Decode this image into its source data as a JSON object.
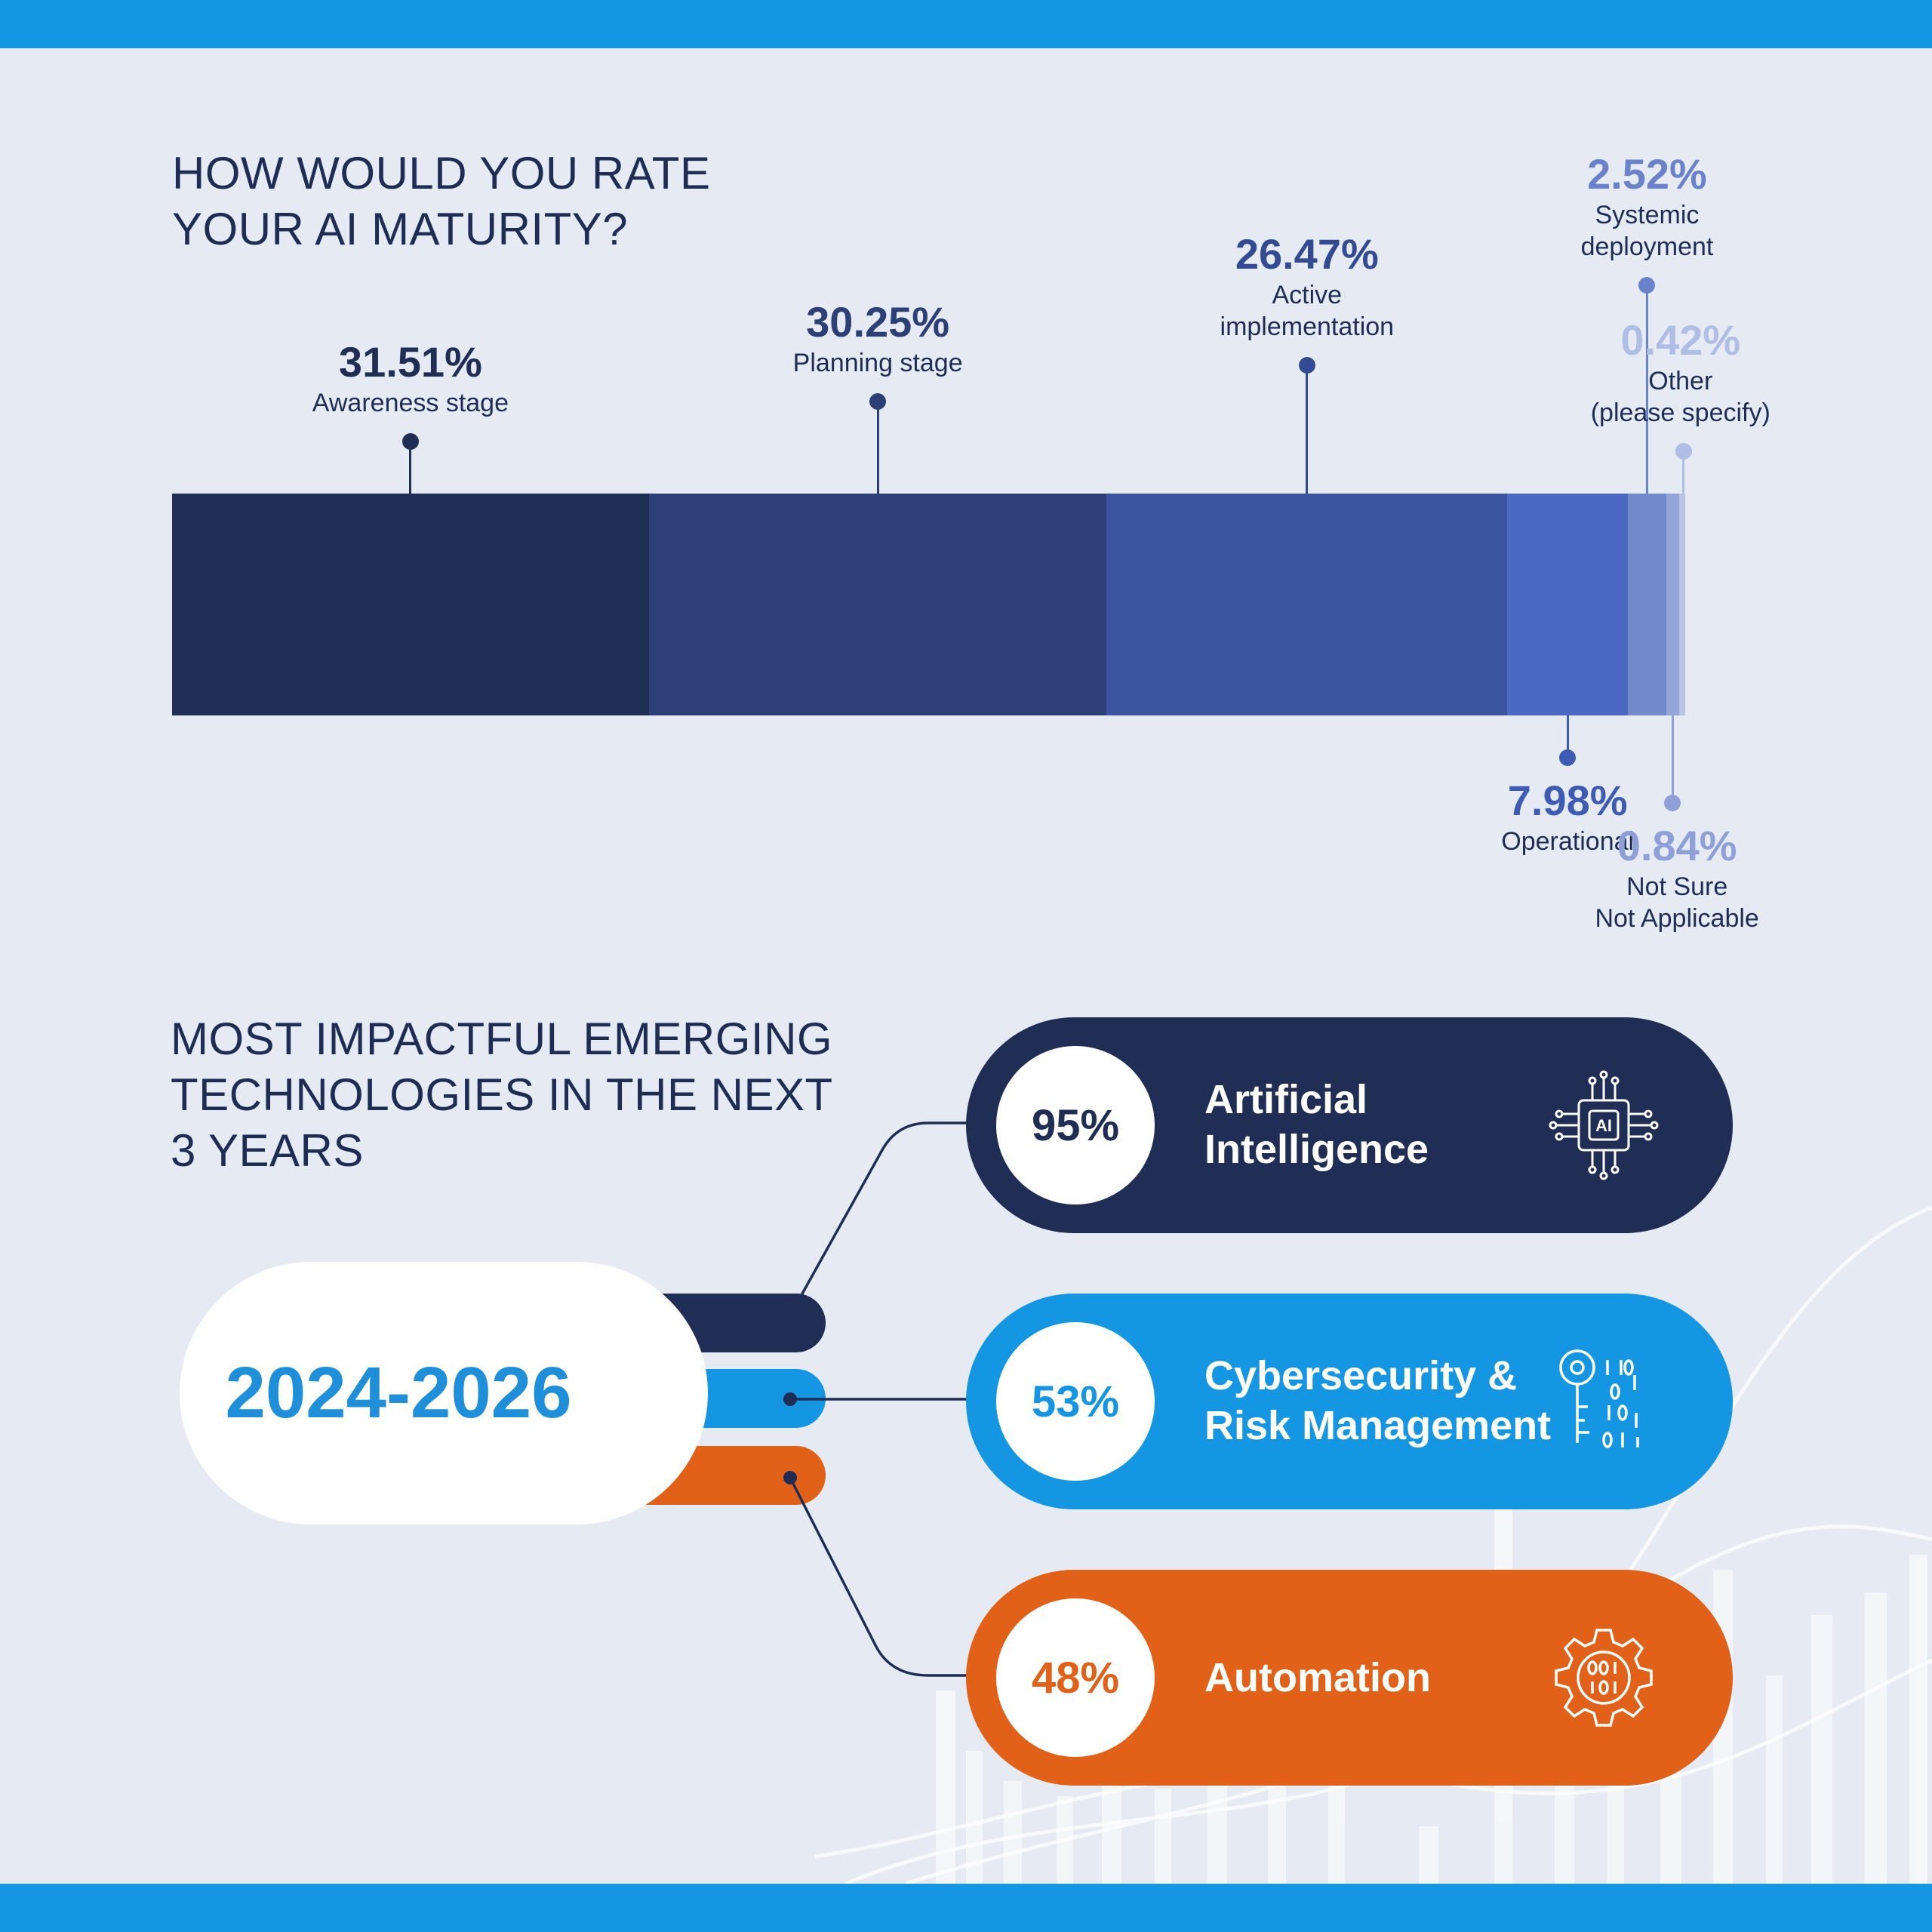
{
  "colors": {
    "band": "#1596e3",
    "background": "#e6ebf3",
    "navy": "#1f2d55",
    "blue": "#1596e3",
    "orange": "#e06117",
    "segments": [
      "#202d54",
      "#2c4077",
      "#3a54a0",
      "#4b69c0",
      "#7289cc",
      "#95a4d9",
      "#b9c3e6"
    ]
  },
  "maturity": {
    "title_line1": "HOW WOULD YOU RATE",
    "title_line2": "YOUR AI MATURITY?"
  },
  "chart_data": {
    "type": "bar",
    "title": "HOW WOULD YOU RATE YOUR AI MATURITY?",
    "stacked": true,
    "orientation": "horizontal",
    "categories": [
      "Awareness stage",
      "Planning stage",
      "Active implementation",
      "Operational",
      "Systemic deployment",
      "Not Sure Not Applicable",
      "Other (please specify)"
    ],
    "values": [
      31.51,
      30.25,
      26.47,
      7.98,
      2.52,
      0.84,
      0.42
    ],
    "value_labels": [
      "31.51%",
      "30.25%",
      "26.47%",
      "7.98%",
      "2.52%",
      "0.84%",
      "0.42%"
    ],
    "caption_lines": [
      [
        "Awareness stage"
      ],
      [
        "Planning stage"
      ],
      [
        "Active",
        "implementation"
      ],
      [
        "Operational"
      ],
      [
        "Systemic",
        "deployment"
      ],
      [
        "Not Sure",
        "Not Applicable"
      ],
      [
        "Other",
        "(please specify)"
      ]
    ],
    "label_side": [
      "above",
      "above",
      "above",
      "below",
      "above",
      "below",
      "above"
    ]
  },
  "technologies": {
    "title_line1": "MOST IMPACTFUL EMERGING",
    "title_line2": "TECHNOLOGIES IN THE NEXT",
    "title_line3": "3 YEARS",
    "period": "2024-2026",
    "items": [
      {
        "percent": "95%",
        "value": 95,
        "name_line1": "Artificial",
        "name_line2": "Intelligence",
        "icon": "ai-chip-icon",
        "color": "#202d54"
      },
      {
        "percent": "53%",
        "value": 53,
        "name_line1": "Cybersecurity &",
        "name_line2": "Risk Management",
        "icon": "key-binary-icon",
        "color": "#1596e3"
      },
      {
        "percent": "48%",
        "value": 48,
        "name_line1": "Automation",
        "name_line2": "",
        "icon": "gear-binary-icon",
        "color": "#e06117"
      }
    ]
  }
}
